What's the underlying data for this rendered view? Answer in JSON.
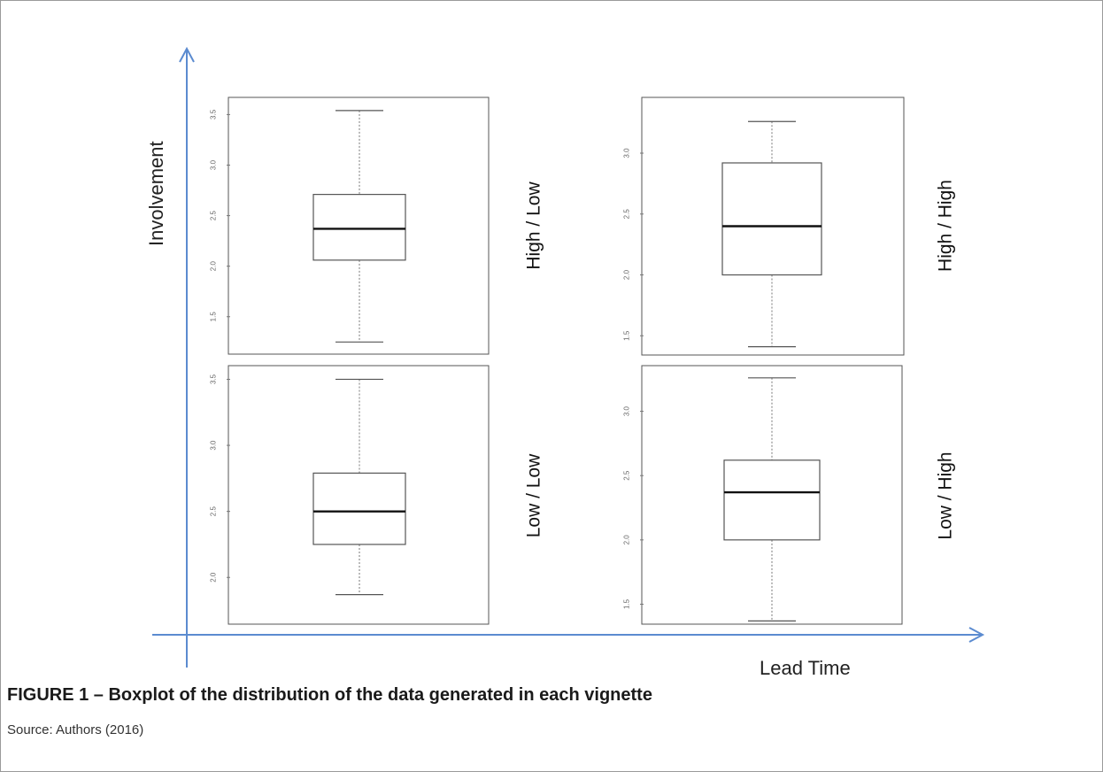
{
  "figure": {
    "caption": "FIGURE 1 – Boxplot of the distribution of the data generated in each vignette",
    "source": "Source: Authors (2016)",
    "y_axis_label": "Involvement",
    "x_axis_label": "Lead Time",
    "axis_color": "#5b8bd0"
  },
  "chart_data": [
    {
      "type": "boxplot",
      "panel": "top-left",
      "label": "High / Low",
      "ylim": [
        1.2,
        3.6
      ],
      "yticks": [
        "1.5",
        "2.0",
        "2.5",
        "3.0",
        "3.5"
      ],
      "ytick_values": [
        1.5,
        2.0,
        2.5,
        3.0,
        3.5
      ],
      "whisker_low": 1.25,
      "q1": 2.06,
      "median": 2.37,
      "q3": 2.71,
      "whisker_high": 3.54
    },
    {
      "type": "boxplot",
      "panel": "top-right",
      "label": "High / High",
      "ylim": [
        1.4,
        3.4
      ],
      "yticks": [
        "1.5",
        "2.0",
        "2.5",
        "3.0"
      ],
      "ytick_values": [
        1.5,
        2.0,
        2.5,
        3.0
      ],
      "whisker_low": 1.41,
      "q1": 2.0,
      "median": 2.4,
      "q3": 2.92,
      "whisker_high": 3.26
    },
    {
      "type": "boxplot",
      "panel": "bottom-left",
      "label": "Low / Low",
      "ylim": [
        1.7,
        3.55
      ],
      "yticks": [
        "2.0",
        "2.5",
        "3.0",
        "3.5"
      ],
      "ytick_values": [
        2.0,
        2.5,
        3.0,
        3.5
      ],
      "whisker_low": 1.87,
      "q1": 2.25,
      "median": 2.5,
      "q3": 2.79,
      "whisker_high": 3.5
    },
    {
      "type": "boxplot",
      "panel": "bottom-right",
      "label": "Low / High",
      "ylim": [
        1.4,
        3.3
      ],
      "yticks": [
        "1.5",
        "2.0",
        "2.5",
        "3.0"
      ],
      "ytick_values": [
        1.5,
        2.0,
        2.5,
        3.0
      ],
      "whisker_low": 1.37,
      "q1": 2.0,
      "median": 2.37,
      "q3": 2.62,
      "whisker_high": 3.26
    }
  ]
}
